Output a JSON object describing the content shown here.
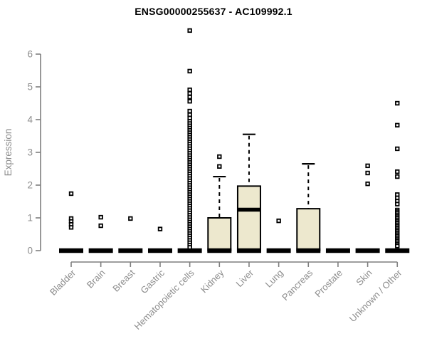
{
  "colors": {
    "background": "#ffffff",
    "box_fill": "#ede8ce",
    "box_stroke": "#000000",
    "median_color": "#000000",
    "outlier_color": "#000000",
    "axis_color": "#7f7f7f",
    "label_color": "#8c8c8c",
    "title_color": "#000000"
  },
  "chart_data": {
    "type": "boxplot",
    "title": "ENSG00000255637 - AC109992.1",
    "xlabel": "",
    "ylabel": "Expression",
    "ylim": [
      0,
      6
    ],
    "yticks": [
      0,
      1,
      2,
      3,
      4,
      5,
      6
    ],
    "grid": false,
    "legend": "none",
    "categories": [
      "Bladder",
      "Brain",
      "Breast",
      "Gastric",
      "Hematopoietic cells",
      "Kidney",
      "Liver",
      "Lung",
      "Pancreas",
      "Prostate",
      "Skin",
      "Unknown / Other"
    ],
    "boxes": [
      {
        "category": "Bladder",
        "whisker_low": 0,
        "q1": 0,
        "median": 0,
        "q3": 0,
        "whisker_high": 0,
        "outliers": [
          1.74,
          0.98,
          0.89,
          0.8,
          0.71
        ]
      },
      {
        "category": "Brain",
        "whisker_low": 0,
        "q1": 0,
        "median": 0,
        "q3": 0,
        "whisker_high": 0,
        "outliers": [
          1.02,
          0.76
        ]
      },
      {
        "category": "Breast",
        "whisker_low": 0,
        "q1": 0,
        "median": 0,
        "q3": 0,
        "whisker_high": 0,
        "outliers": [
          0.98
        ]
      },
      {
        "category": "Gastric",
        "whisker_low": 0,
        "q1": 0,
        "median": 0,
        "q3": 0,
        "whisker_high": 0,
        "outliers": [
          0.66
        ]
      },
      {
        "category": "Hematopoietic cells",
        "whisker_low": 0,
        "q1": 0,
        "median": 0,
        "q3": 0,
        "whisker_high": 0,
        "outliers": [
          6.72,
          5.48,
          4.91,
          4.8,
          4.69,
          4.56,
          4.26,
          4.15,
          4.05,
          3.95,
          3.88,
          3.81,
          3.74,
          3.67,
          3.6,
          3.53,
          3.46,
          3.39,
          3.32,
          3.25,
          3.18,
          3.11,
          3.04,
          2.97,
          2.9,
          2.83,
          2.76,
          2.69,
          2.62,
          2.55,
          2.48,
          2.41,
          2.34,
          2.27,
          2.2,
          2.13,
          2.06,
          1.99,
          1.92,
          1.85,
          1.78,
          1.71,
          1.64,
          1.57,
          1.5,
          1.43,
          1.36,
          1.29,
          1.22,
          1.15,
          1.08,
          1.01,
          0.94,
          0.87,
          0.8,
          0.73,
          0.66,
          0.59,
          0.52,
          0.45,
          0.38,
          0.31,
          0.24,
          0.17,
          0.1
        ]
      },
      {
        "category": "Kidney",
        "whisker_low": 0,
        "q1": 0,
        "median": 0,
        "q3": 1.0,
        "whisker_high": 2.26,
        "outliers": [
          2.87,
          2.57
        ]
      },
      {
        "category": "Liver",
        "whisker_low": 0,
        "q1": 0,
        "median": 1.25,
        "q3": 1.97,
        "whisker_high": 3.55,
        "outliers": []
      },
      {
        "category": "Lung",
        "whisker_low": 0,
        "q1": 0,
        "median": 0,
        "q3": 0,
        "whisker_high": 0,
        "outliers": [
          0.91
        ]
      },
      {
        "category": "Pancreas",
        "whisker_low": 0,
        "q1": 0,
        "median": 0,
        "q3": 1.28,
        "whisker_high": 2.65,
        "outliers": []
      },
      {
        "category": "Prostate",
        "whisker_low": 0,
        "q1": 0,
        "median": 0,
        "q3": 0,
        "whisker_high": 0,
        "outliers": []
      },
      {
        "category": "Skin",
        "whisker_low": 0,
        "q1": 0,
        "median": 0,
        "q3": 0,
        "whisker_high": 0,
        "outliers": [
          2.59,
          2.37,
          2.04
        ]
      },
      {
        "category": "Unknown / Other",
        "whisker_low": 0,
        "q1": 0,
        "median": 0,
        "q3": 0,
        "whisker_high": 0,
        "outliers": [
          4.5,
          3.83,
          3.11,
          2.41,
          2.26,
          1.71,
          1.61,
          1.51,
          1.42,
          1.24,
          1.19,
          1.14,
          1.09,
          1.04,
          0.99,
          0.94,
          0.89,
          0.84,
          0.79,
          0.74,
          0.69,
          0.64,
          0.59,
          0.54,
          0.49,
          0.44,
          0.39,
          0.34,
          0.29,
          0.24,
          0.19,
          0.14
        ]
      }
    ]
  }
}
